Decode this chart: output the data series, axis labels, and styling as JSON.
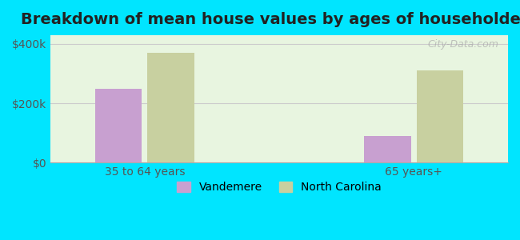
{
  "title": "Breakdown of mean house values by ages of householders",
  "categories": [
    "35 to 64 years",
    "65 years+"
  ],
  "series": {
    "Vandemere": [
      250000,
      90000
    ],
    "North Carolina": [
      370000,
      310000
    ]
  },
  "bar_colors": {
    "Vandemere": "#c8a0d0",
    "North Carolina": "#c8d0a0"
  },
  "background_color": "#00e5ff",
  "plot_bg_start": "#e8f5e0",
  "plot_bg_end": "#ffffff",
  "ylim": [
    0,
    430000
  ],
  "yticks": [
    0,
    200000,
    400000
  ],
  "ytick_labels": [
    "$0",
    "$200k",
    "$400k"
  ],
  "title_fontsize": 14,
  "legend_fontsize": 10,
  "tick_fontsize": 10,
  "bar_width": 0.35,
  "group_positions": [
    1,
    3
  ],
  "watermark": "City-Data.com"
}
